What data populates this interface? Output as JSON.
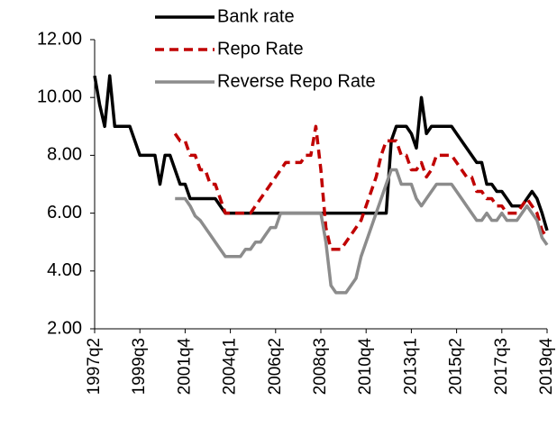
{
  "chart_data": {
    "type": "line",
    "categories": [
      "1997q2",
      null,
      null,
      null,
      null,
      null,
      null,
      null,
      null,
      "1999q3",
      null,
      null,
      null,
      null,
      null,
      null,
      null,
      null,
      "2001q4",
      null,
      null,
      null,
      null,
      null,
      null,
      null,
      null,
      "2004q1",
      null,
      null,
      null,
      null,
      null,
      null,
      null,
      null,
      "2006q2",
      null,
      null,
      null,
      null,
      null,
      null,
      null,
      null,
      "2008q3",
      null,
      null,
      null,
      null,
      null,
      null,
      null,
      null,
      "2010q4",
      null,
      null,
      null,
      null,
      null,
      null,
      null,
      null,
      "2013q1",
      null,
      null,
      null,
      null,
      null,
      null,
      null,
      null,
      "2015q2",
      null,
      null,
      null,
      null,
      null,
      null,
      null,
      null,
      "2017q3",
      null,
      null,
      null,
      null,
      null,
      null,
      null,
      null,
      "2019q4"
    ],
    "series": [
      {
        "name": "Bank rate",
        "color": "#000000",
        "dash": "solid",
        "values": [
          10.75,
          9.75,
          9.0,
          10.75,
          9.0,
          9.0,
          9.0,
          9.0,
          8.5,
          8.0,
          8.0,
          8.0,
          8.0,
          7.0,
          8.0,
          8.0,
          7.5,
          7.0,
          7.0,
          6.5,
          6.5,
          6.5,
          6.5,
          6.5,
          6.5,
          6.25,
          6.0,
          6.0,
          6.0,
          6.0,
          6.0,
          6.0,
          6.0,
          6.0,
          6.0,
          6.0,
          6.0,
          6.0,
          6.0,
          6.0,
          6.0,
          6.0,
          6.0,
          6.0,
          6.0,
          6.0,
          6.0,
          6.0,
          6.0,
          6.0,
          6.0,
          6.0,
          6.0,
          6.0,
          6.0,
          6.0,
          6.0,
          6.0,
          6.0,
          8.5,
          9.0,
          9.0,
          9.0,
          8.75,
          8.25,
          10.0,
          8.75,
          9.0,
          9.0,
          9.0,
          9.0,
          9.0,
          8.75,
          8.5,
          8.25,
          8.0,
          7.75,
          7.75,
          7.0,
          7.0,
          6.75,
          6.75,
          6.5,
          6.25,
          6.25,
          6.25,
          6.5,
          6.75,
          6.5,
          6.0,
          5.4
        ]
      },
      {
        "name": "Repo Rate",
        "color": "#c00000",
        "dash": "dashed",
        "values": [
          null,
          null,
          null,
          null,
          null,
          null,
          null,
          null,
          null,
          null,
          null,
          null,
          null,
          null,
          null,
          null,
          8.75,
          8.5,
          8.5,
          8.0,
          8.0,
          7.5,
          7.5,
          7.0,
          7.0,
          6.5,
          6.0,
          6.0,
          6.0,
          6.0,
          6.0,
          6.0,
          6.25,
          6.5,
          6.75,
          7.0,
          7.25,
          7.5,
          7.75,
          7.75,
          7.75,
          7.75,
          8.0,
          8.0,
          9.0,
          7.5,
          5.5,
          4.75,
          4.75,
          4.75,
          5.0,
          5.25,
          5.5,
          5.75,
          6.25,
          6.75,
          7.25,
          8.0,
          8.5,
          8.5,
          8.5,
          8.0,
          8.0,
          7.5,
          7.5,
          7.75,
          7.25,
          7.5,
          8.0,
          8.0,
          8.0,
          8.0,
          7.75,
          7.5,
          7.25,
          7.25,
          6.75,
          6.75,
          6.5,
          6.5,
          6.25,
          6.25,
          6.0,
          6.0,
          6.0,
          6.25,
          6.5,
          6.25,
          6.0,
          5.4,
          5.15
        ]
      },
      {
        "name": "Reverse Repo Rate",
        "color": "#8c8c8c",
        "dash": "solid",
        "values": [
          null,
          null,
          null,
          null,
          null,
          null,
          null,
          null,
          null,
          null,
          null,
          null,
          null,
          null,
          null,
          null,
          6.5,
          6.5,
          6.5,
          6.25,
          5.9,
          5.75,
          5.5,
          5.25,
          5.0,
          4.75,
          4.5,
          4.5,
          4.5,
          4.5,
          4.75,
          4.75,
          5.0,
          5.0,
          5.25,
          5.5,
          5.5,
          6.0,
          6.0,
          6.0,
          6.0,
          6.0,
          6.0,
          6.0,
          6.0,
          6.0,
          5.0,
          3.5,
          3.25,
          3.25,
          3.25,
          3.5,
          3.75,
          4.5,
          5.0,
          5.5,
          6.0,
          6.5,
          7.0,
          7.5,
          7.5,
          7.0,
          7.0,
          7.0,
          6.5,
          6.25,
          6.5,
          6.75,
          7.0,
          7.0,
          7.0,
          7.0,
          6.75,
          6.5,
          6.25,
          6.0,
          5.75,
          5.75,
          6.0,
          5.75,
          5.75,
          6.0,
          5.75,
          5.75,
          5.75,
          6.0,
          6.25,
          6.0,
          5.75,
          5.15,
          4.9
        ]
      }
    ],
    "ylim": [
      2,
      12
    ],
    "yticks": [
      {
        "value": 2,
        "label": "2.00"
      },
      {
        "value": 4,
        "label": "4.00"
      },
      {
        "value": 6,
        "label": "6.00"
      },
      {
        "value": 8,
        "label": "8.00"
      },
      {
        "value": 10,
        "label": "10.00"
      },
      {
        "value": 12,
        "label": "12.00"
      }
    ],
    "grid": false,
    "legend": "top"
  }
}
